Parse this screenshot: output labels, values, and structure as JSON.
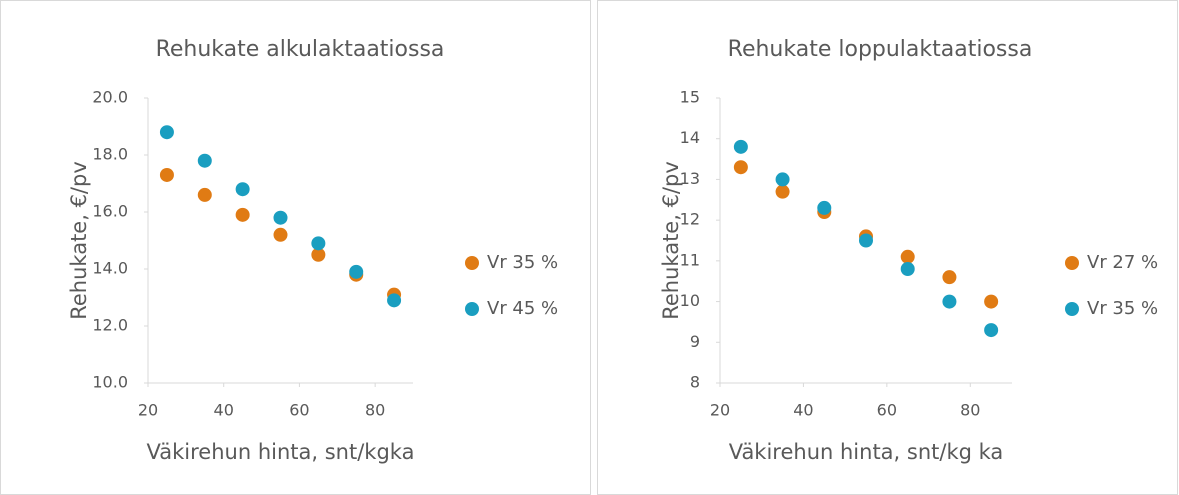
{
  "chart_data": [
    {
      "type": "scatter",
      "title": "Rehukate alkulaktaatiossa",
      "x_label": "Väkirehun hinta, snt/kgka",
      "y_label": "Rehukate, €/pv",
      "x": [
        25,
        35,
        45,
        55,
        65,
        75,
        85
      ],
      "series": [
        {
          "name": "Vr 35 %",
          "color": "#e07b14",
          "values": [
            17.3,
            16.6,
            15.9,
            15.2,
            14.5,
            13.8,
            13.1
          ]
        },
        {
          "name": "Vr 45 %",
          "color": "#1a9ec0",
          "values": [
            18.8,
            17.8,
            16.8,
            15.8,
            14.9,
            13.9,
            12.9
          ]
        }
      ],
      "xlim": [
        20,
        90
      ],
      "xticks": [
        20,
        40,
        60,
        80
      ],
      "ylim": [
        10,
        20
      ],
      "yticks": [
        {
          "value": 10,
          "label": "10.0"
        },
        {
          "value": 12,
          "label": "12.0"
        },
        {
          "value": 14,
          "label": "14.0"
        },
        {
          "value": 16,
          "label": "16.0"
        },
        {
          "value": 18,
          "label": "18.0"
        },
        {
          "value": 20,
          "label": "20.0"
        }
      ],
      "legend": "right",
      "grid": false
    },
    {
      "type": "scatter",
      "title": "Rehukate loppulaktaatiossa",
      "x_label": "Väkirehun hinta, snt/kg ka",
      "y_label": "Rehukate, €/pv",
      "x": [
        25,
        35,
        45,
        55,
        65,
        75,
        85
      ],
      "series": [
        {
          "name": "Vr 27 %",
          "color": "#e07b14",
          "values": [
            13.3,
            12.7,
            12.2,
            11.6,
            11.1,
            10.6,
            10.0
          ]
        },
        {
          "name": "Vr 35 %",
          "color": "#1a9ec0",
          "values": [
            13.8,
            13.0,
            12.3,
            11.5,
            10.8,
            10.0,
            9.3
          ]
        }
      ],
      "xlim": [
        20,
        90
      ],
      "xticks": [
        20,
        40,
        60,
        80
      ],
      "ylim": [
        8,
        15
      ],
      "yticks": [
        8,
        9,
        10,
        11,
        12,
        13,
        14,
        15
      ],
      "legend": "right",
      "grid": false
    }
  ]
}
